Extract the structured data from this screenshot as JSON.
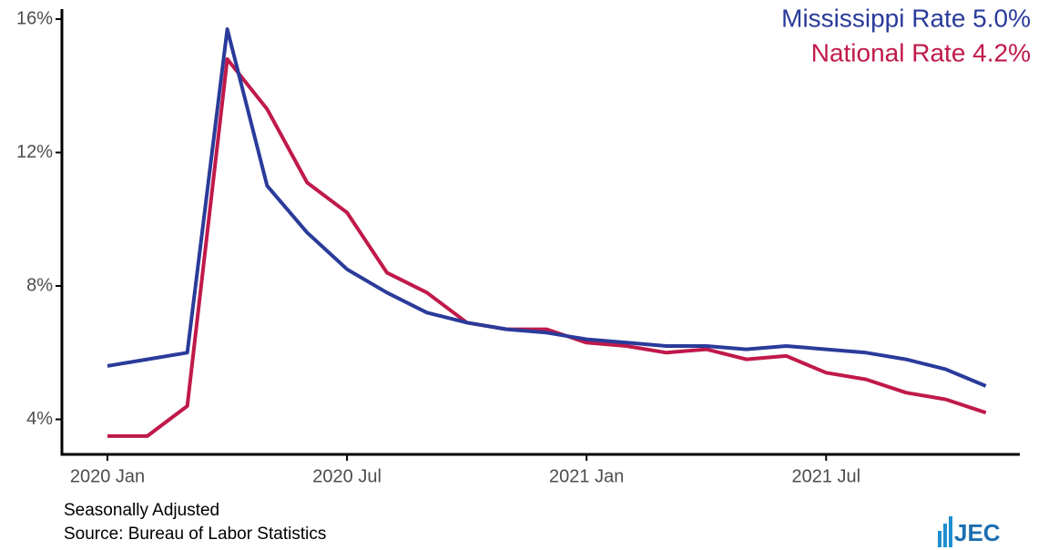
{
  "chart_data": {
    "type": "line",
    "categories": [
      "2020 Jan",
      null,
      null,
      null,
      null,
      null,
      "2020 Jul",
      null,
      null,
      null,
      null,
      null,
      "2021 Jan",
      null,
      null,
      null,
      null,
      null,
      "2021 Jul",
      null,
      null,
      null,
      null
    ],
    "series": [
      {
        "name": "Mississippi Rate 5.0%",
        "color": "#2a3b9a",
        "values": [
          5.6,
          5.8,
          6.0,
          15.7,
          11.0,
          9.6,
          8.5,
          7.8,
          7.2,
          6.9,
          6.7,
          6.6,
          6.4,
          6.3,
          6.2,
          6.2,
          6.1,
          6.2,
          6.1,
          6.0,
          5.8,
          5.5,
          5.0
        ]
      },
      {
        "name": "National Rate 4.2%",
        "color": "#c0194a",
        "values": [
          3.5,
          3.5,
          4.4,
          14.8,
          13.3,
          11.1,
          10.2,
          8.4,
          7.8,
          6.9,
          6.7,
          6.7,
          6.3,
          6.2,
          6.0,
          6.1,
          5.8,
          5.9,
          5.4,
          5.2,
          4.8,
          4.6,
          4.2
        ]
      }
    ],
    "ylim": [
      2.95,
      16.3
    ],
    "yticks": [
      {
        "value": 4,
        "label": "4%"
      },
      {
        "value": 8,
        "label": "8%"
      },
      {
        "value": 12,
        "label": "12%"
      },
      {
        "value": 16,
        "label": "16%"
      }
    ],
    "grid": false,
    "legend": "top-right",
    "notes": [
      "Seasonally Adjusted",
      "Source: Bureau of Labor Statistics"
    ],
    "logo": "JEC"
  }
}
